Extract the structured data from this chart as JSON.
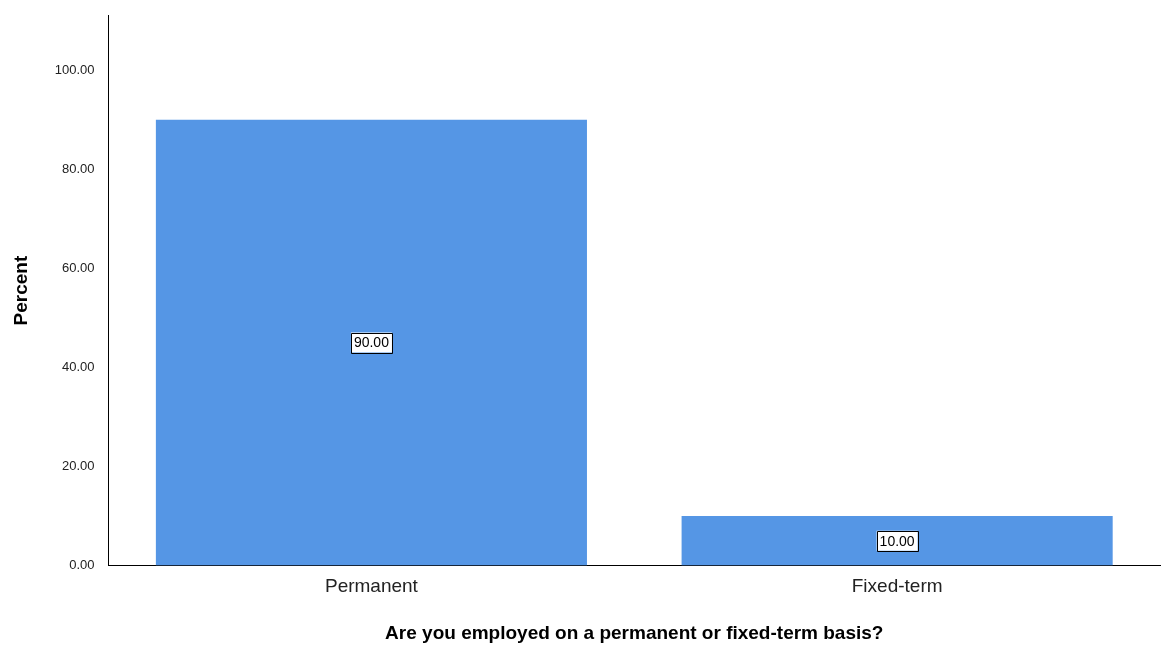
{
  "chart_data": {
    "type": "bar",
    "xlabel": "Are you employed on a permanent or fixed-term basis?",
    "ylabel": "Percent",
    "categories": [
      "Permanent",
      "Fixed-term"
    ],
    "values": [
      90,
      10
    ],
    "color": "#5596e5",
    "value_labels": [
      "90.00",
      "10.00"
    ],
    "ylim": [
      0,
      111
    ],
    "yticks": [
      {
        "value": 0,
        "label": "0.00"
      },
      {
        "value": 20,
        "label": "20.00"
      },
      {
        "value": 40,
        "label": "40.00"
      },
      {
        "value": 60,
        "label": "60.00"
      },
      {
        "value": 80,
        "label": "80.00"
      },
      {
        "value": 100,
        "label": "100.00"
      }
    ],
    "grid": false,
    "legend": false
  }
}
